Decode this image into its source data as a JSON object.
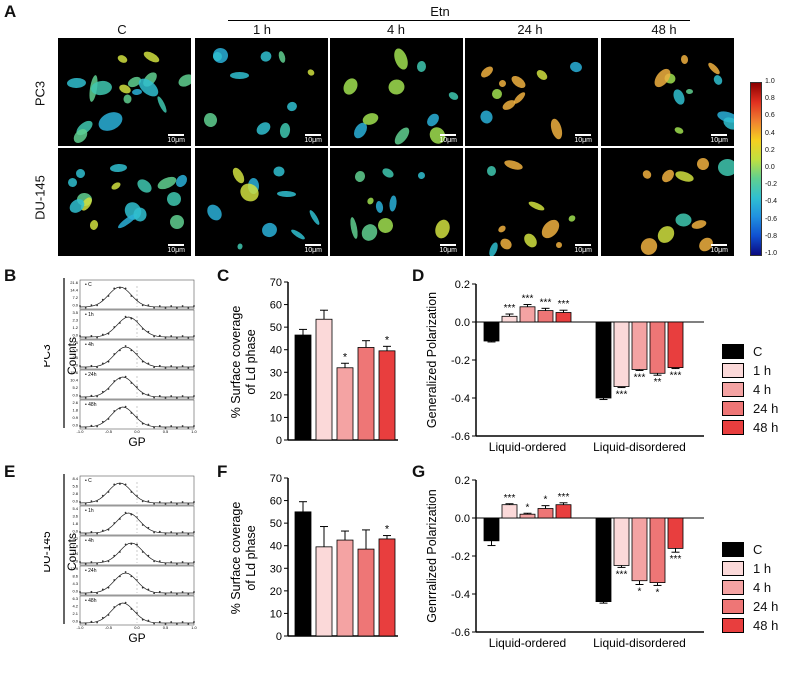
{
  "panel_letters": {
    "A": "A",
    "B": "B",
    "C": "C",
    "D": "D",
    "E": "E",
    "F": "F",
    "G": "G"
  },
  "panelA": {
    "treatment_label": "Etn",
    "columns": [
      "C",
      "1 h",
      "4 h",
      "24 h",
      "48 h"
    ],
    "rows": [
      "PC3",
      "DU-145"
    ],
    "scalebar_label": "10μm",
    "colorbar_ticks": [
      "1.0",
      "0.8",
      "0.6",
      "0.4",
      "0.2",
      "0.0",
      "-0.2",
      "-0.4",
      "-0.6",
      "-0.8",
      "-1.0"
    ]
  },
  "panelB": {
    "cell_line": "PC3",
    "ylabel": "Counts",
    "xlabel": "GP",
    "x_ticks": [
      "-1.0",
      "-0.5",
      "0.0",
      "0.5",
      "1.0"
    ],
    "subplots": [
      {
        "label": "C",
        "y_ticks": [
          "21.6",
          "14.4",
          "7.2",
          "0.0"
        ]
      },
      {
        "label": "1h",
        "y_ticks": [
          "3.5",
          "2.3",
          "1.2",
          "0.0"
        ]
      },
      {
        "label": "4h",
        "y_ticks": [
          "7.5",
          "5.0",
          "2.5",
          "0.0"
        ]
      },
      {
        "label": "24h",
        "y_ticks": [
          "15.6",
          "10.4",
          "5.2",
          "0.0"
        ]
      },
      {
        "label": "48h",
        "y_ticks": [
          "2.6",
          "1.8",
          "0.9",
          "0.0"
        ]
      }
    ]
  },
  "panelE": {
    "cell_line": "DU-145",
    "ylabel": "Counts",
    "xlabel": "GP",
    "x_ticks": [
      "-1.0",
      "-0.5",
      "0.0",
      "0.5",
      "1.0"
    ],
    "subplots": [
      {
        "label": "C",
        "y_ticks": [
          "8.4",
          "5.6",
          "2.8",
          "0.0"
        ]
      },
      {
        "label": "1h",
        "y_ticks": [
          "5.4",
          "3.6",
          "1.8",
          "0.0"
        ]
      },
      {
        "label": "4h",
        "y_ticks": [
          "4.2",
          "2.8",
          "1.4",
          "0.0"
        ]
      },
      {
        "label": "24h",
        "y_ticks": [
          "12.9",
          "8.6",
          "4.3",
          "0.0"
        ]
      },
      {
        "label": "48h",
        "y_ticks": [
          "6.3",
          "4.2",
          "2.1",
          "0.0"
        ]
      }
    ]
  },
  "legend": {
    "title": "",
    "entries": [
      "C",
      "1 h",
      "4 h",
      "24 h",
      "48 h"
    ]
  },
  "chart_data": [
    {
      "id": "C",
      "type": "bar",
      "ylabel": "% Surface coverage of Ld phase",
      "ylabel_lines": [
        "% Surface coverage",
        "of Ld phase"
      ],
      "ylim": [
        0,
        70
      ],
      "yticks": [
        0,
        10,
        20,
        30,
        40,
        50,
        60,
        70
      ],
      "categories": [
        "C",
        "1 h",
        "4 h",
        "24 h",
        "48 h"
      ],
      "values": [
        46.5,
        53.5,
        32,
        41,
        39.5
      ],
      "errors": [
        2.5,
        4,
        2,
        3,
        2
      ],
      "annotations": [
        "",
        "",
        "*",
        "",
        "*"
      ]
    },
    {
      "id": "D",
      "type": "bar",
      "ylabel": "Generalized Polarization",
      "ylim": [
        -0.6,
        0.2
      ],
      "yticks": [
        "0.2",
        "0.0",
        "-0.2",
        "-0.4",
        "-0.6"
      ],
      "groups": [
        "Liquid-ordered",
        "Liquid-disordered"
      ],
      "series": [
        {
          "name": "C",
          "values": [
            -0.1,
            -0.4
          ],
          "errors": [
            0.005,
            0.008
          ]
        },
        {
          "name": "1 h",
          "values": [
            0.03,
            -0.34
          ],
          "errors": [
            0.012,
            0.005
          ]
        },
        {
          "name": "4 h",
          "values": [
            0.08,
            -0.25
          ],
          "errors": [
            0.012,
            0.005
          ]
        },
        {
          "name": "24 h",
          "values": [
            0.06,
            -0.27
          ],
          "errors": [
            0.012,
            0.01
          ]
        },
        {
          "name": "48 h",
          "values": [
            0.05,
            -0.24
          ],
          "errors": [
            0.012,
            0.005
          ]
        }
      ],
      "annotations": [
        [
          "",
          "***",
          "***",
          "***",
          "***"
        ],
        [
          "",
          "***",
          "***",
          "**",
          "***"
        ]
      ]
    },
    {
      "id": "F",
      "type": "bar",
      "ylabel": "% Surface coverage of Ld phase",
      "ylabel_lines": [
        "% Surface coverage",
        "of Ld phase"
      ],
      "ylim": [
        0,
        70
      ],
      "yticks": [
        0,
        10,
        20,
        30,
        40,
        50,
        60,
        70
      ],
      "categories": [
        "C",
        "1 h",
        "4 h",
        "24 h",
        "48 h"
      ],
      "values": [
        55,
        39.5,
        42.5,
        38.5,
        43
      ],
      "errors": [
        4.5,
        9,
        4,
        8.5,
        1.5
      ],
      "annotations": [
        "",
        "",
        "",
        "",
        "*"
      ]
    },
    {
      "id": "G",
      "type": "bar",
      "ylabel": "Genrralized Polarization",
      "ylim": [
        -0.6,
        0.2
      ],
      "yticks": [
        "0.2",
        "0.0",
        "-0.2",
        "-0.4",
        "-0.6"
      ],
      "groups": [
        "Liquid-ordered",
        "Liquid-disordered"
      ],
      "series": [
        {
          "name": "C",
          "values": [
            -0.12,
            -0.44
          ],
          "errors": [
            0.025,
            0.008
          ]
        },
        {
          "name": "1 h",
          "values": [
            0.07,
            -0.25
          ],
          "errors": [
            0.005,
            0.01
          ]
        },
        {
          "name": "4 h",
          "values": [
            0.02,
            -0.33
          ],
          "errors": [
            0.005,
            0.02
          ]
        },
        {
          "name": "24 h",
          "values": [
            0.05,
            -0.34
          ],
          "errors": [
            0.015,
            0.015
          ]
        },
        {
          "name": "48 h",
          "values": [
            0.07,
            -0.16
          ],
          "errors": [
            0.01,
            0.02
          ]
        }
      ],
      "annotations": [
        [
          "",
          "***",
          "*",
          "*",
          "***"
        ],
        [
          "",
          "***",
          "*",
          "*",
          "***"
        ]
      ]
    }
  ],
  "colors": {
    "bars": [
      "#000000",
      "#fbd9d9",
      "#f4a3a3",
      "#ee7676",
      "#e83e3e"
    ],
    "colormap": [
      "#8b0000",
      "#e03020",
      "#f08030",
      "#f5d020",
      "#c0e040",
      "#60d090",
      "#30c0d0",
      "#2090e0",
      "#1050d0",
      "#0a0a80"
    ]
  }
}
